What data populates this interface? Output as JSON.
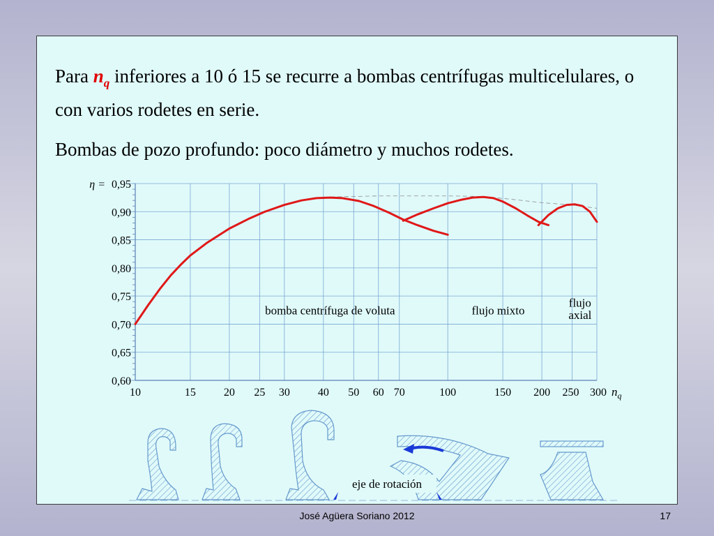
{
  "slide": {
    "para1_pre": "Para",
    "para1_sym": "n",
    "para1_sub": "q",
    "para1_post": "inferiores a 10 ó 15 se recurre a bombas centrífugas multicelulares, o con varios rodetes en serie.",
    "para2": "Bombas de pozo profundo: poco diámetro y muchos rodetes."
  },
  "chart_data": {
    "type": "line",
    "x_scale": "log",
    "xlim": [
      10,
      300
    ],
    "ylim": [
      0.6,
      0.95
    ],
    "x_ticks": [
      10,
      15,
      20,
      25,
      30,
      40,
      50,
      60,
      70,
      100,
      150,
      200,
      250,
      300
    ],
    "x_tick_labels": [
      "10",
      "15",
      "20",
      "25",
      "30",
      "40",
      "50",
      "60",
      "70",
      "100",
      "150",
      "200",
      "250",
      "300"
    ],
    "y_ticks": [
      0.6,
      0.65,
      0.7,
      0.75,
      0.8,
      0.85,
      0.9,
      0.95
    ],
    "y_tick_labels": [
      "0,60",
      "0,65",
      "0,70",
      "0,75",
      "0,80",
      "0,85",
      "0,90",
      "0,95"
    ],
    "y_top_prefix": "η =",
    "x_axis_symbol": "n",
    "x_axis_sub": "q",
    "series": [
      {
        "x": [
          10,
          11,
          12,
          13,
          14,
          15,
          17,
          20,
          23,
          26,
          30,
          34,
          38,
          42,
          46,
          52,
          58,
          65,
          72,
          80,
          90,
          100
        ],
        "y": [
          0.7,
          0.734,
          0.763,
          0.787,
          0.806,
          0.822,
          0.845,
          0.87,
          0.887,
          0.9,
          0.912,
          0.92,
          0.924,
          0.925,
          0.924,
          0.919,
          0.91,
          0.898,
          0.886,
          0.876,
          0.866,
          0.859
        ]
      },
      {
        "x": [
          72,
          80,
          90,
          100,
          110,
          120,
          130,
          140,
          150,
          165,
          180,
          195,
          210
        ],
        "y": [
          0.884,
          0.895,
          0.906,
          0.915,
          0.921,
          0.925,
          0.926,
          0.924,
          0.918,
          0.906,
          0.893,
          0.882,
          0.876
        ]
      },
      {
        "x": [
          195,
          210,
          225,
          240,
          255,
          270,
          285,
          300
        ],
        "y": [
          0.876,
          0.894,
          0.906,
          0.912,
          0.913,
          0.91,
          0.9,
          0.882
        ]
      }
    ],
    "envelope": {
      "x": [
        40,
        50,
        60,
        70,
        80,
        100,
        130,
        160,
        200,
        250,
        300
      ],
      "y": [
        0.926,
        0.927,
        0.928,
        0.928,
        0.928,
        0.928,
        0.927,
        0.922,
        0.916,
        0.912,
        0.906
      ]
    },
    "annotations": [
      {
        "text": "bomba centrífuga de voluta",
        "x": 42,
        "y": 0.717
      },
      {
        "text": "flujo mixto",
        "x": 145,
        "y": 0.717
      },
      {
        "text": "flujo",
        "x": 265,
        "y": 0.731
      },
      {
        "text": "axial",
        "x": 265,
        "y": 0.709
      }
    ],
    "impeller_label": "eje de rotación",
    "colors": {
      "curve": "#e01818",
      "grid": "#7aa7d2",
      "axis": "#5a7fb5",
      "hatch": "#6699cc",
      "arrow": "#1a3ad8",
      "text": "#000000"
    }
  },
  "footer": {
    "author": "José Agüera Soriano 2012",
    "page": "17"
  }
}
